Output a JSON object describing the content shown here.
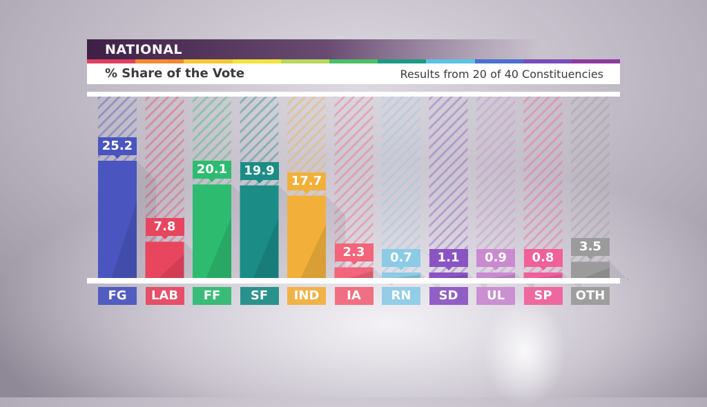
{
  "header": {
    "title": "NATIONAL",
    "subtitle": "% Share of the Vote",
    "results_note": "Results from 20 of 40 Constituencies"
  },
  "chart_data": {
    "type": "bar",
    "title": "% Share of the Vote",
    "xlabel": "",
    "ylabel": "",
    "ylim": [
      0,
      30
    ],
    "grid": false,
    "legend": "none",
    "categories": [
      "FG",
      "LAB",
      "FF",
      "SF",
      "IND",
      "IA",
      "RN",
      "SD",
      "UL",
      "SP",
      "OTH"
    ],
    "values": [
      25.2,
      7.8,
      20.1,
      19.9,
      17.7,
      2.3,
      0.7,
      1.1,
      0.9,
      0.8,
      3.5
    ],
    "value_labels": [
      "25.2",
      "7.8",
      "20.1",
      "19.9",
      "17.7",
      "2.3",
      "0.7",
      "1.1",
      "0.9",
      "0.8",
      "3.5"
    ],
    "colors": [
      "#4a55bf",
      "#e8455f",
      "#2dbb70",
      "#1b8c86",
      "#f2b03a",
      "#f2657a",
      "#8ccbe6",
      "#8a54c2",
      "#c98ad0",
      "#f0609a",
      "#9b9b9b"
    ]
  },
  "stripe_colors": [
    "#e04060",
    "#f28a30",
    "#f5c830",
    "#f2e43a",
    "#b9d85a",
    "#4bbf66",
    "#1d9a84",
    "#5bc3e5",
    "#4b6ed0",
    "#7a4cb8",
    "#8e3a9e"
  ]
}
